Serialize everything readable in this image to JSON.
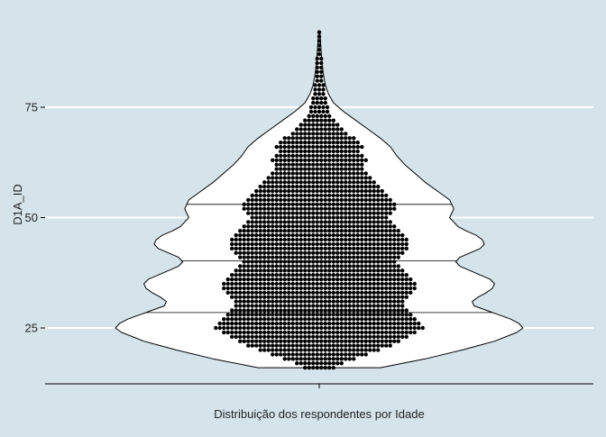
{
  "chart_data": {
    "type": "violin",
    "subtype": "violin with dot plot and quartile lines",
    "xlabel": "Distribuição dos respondentes por Idade",
    "ylabel": "D1A_ID",
    "y_ticks": [
      25,
      50,
      75
    ],
    "y_tick_labels": [
      "25",
      "50",
      "75"
    ],
    "ylim": [
      12,
      96
    ],
    "grid": "horizontal major lines, white",
    "background": "#d5e4eb",
    "fill_color": "#ffffff",
    "point_color": "#000000",
    "line_color": "#000000",
    "quartiles": [
      28.5,
      40.2,
      53.0
    ],
    "min": 16,
    "max": 92,
    "density_profile": {
      "y": [
        16,
        18,
        20,
        22,
        24,
        25,
        26,
        27,
        28,
        29,
        30,
        31,
        32,
        33,
        34,
        35,
        36,
        37,
        38,
        39,
        40,
        41,
        42,
        43,
        44,
        45,
        46,
        47,
        48,
        50,
        52,
        54,
        56,
        58,
        60,
        62,
        64,
        66,
        68,
        70,
        72,
        74,
        76,
        78,
        80,
        82,
        84,
        86,
        88,
        90,
        92
      ],
      "width": [
        0.3,
        0.52,
        0.7,
        0.86,
        0.97,
        1.0,
        0.98,
        0.94,
        0.88,
        0.82,
        0.76,
        0.75,
        0.78,
        0.82,
        0.85,
        0.86,
        0.84,
        0.79,
        0.74,
        0.69,
        0.67,
        0.69,
        0.74,
        0.79,
        0.81,
        0.8,
        0.77,
        0.72,
        0.68,
        0.64,
        0.66,
        0.64,
        0.58,
        0.52,
        0.47,
        0.42,
        0.38,
        0.35,
        0.3,
        0.24,
        0.18,
        0.12,
        0.07,
        0.045,
        0.03,
        0.022,
        0.016,
        0.012,
        0.009,
        0.006,
        0.003
      ]
    },
    "dot_rows": {
      "y": [
        16,
        17,
        18,
        19,
        20,
        21,
        22,
        23,
        24,
        25,
        26,
        27,
        28,
        29,
        30,
        31,
        32,
        33,
        34,
        35,
        36,
        37,
        38,
        39,
        40,
        41,
        42,
        43,
        44,
        45,
        46,
        47,
        48,
        49,
        50,
        51,
        52,
        53,
        54,
        55,
        56,
        57,
        58,
        59,
        60,
        61,
        62,
        63,
        64,
        65,
        66,
        67,
        68,
        69,
        70,
        71,
        72,
        73,
        74,
        75,
        76,
        77,
        78,
        79,
        80,
        81,
        82,
        83,
        84,
        85,
        86,
        87,
        88,
        89,
        90,
        91,
        92
      ],
      "count": [
        8,
        12,
        18,
        24,
        30,
        36,
        40,
        44,
        48,
        52,
        50,
        48,
        46,
        44,
        42,
        42,
        44,
        46,
        48,
        48,
        46,
        44,
        42,
        40,
        38,
        40,
        42,
        44,
        44,
        44,
        42,
        40,
        38,
        36,
        34,
        36,
        38,
        38,
        36,
        34,
        32,
        30,
        28,
        26,
        24,
        22,
        22,
        24,
        22,
        20,
        22,
        20,
        18,
        14,
        12,
        10,
        8,
        6,
        5,
        5,
        4,
        4,
        3,
        3,
        3,
        2,
        2,
        2,
        2,
        2,
        2,
        1,
        1,
        1,
        1,
        1,
        1
      ]
    }
  }
}
